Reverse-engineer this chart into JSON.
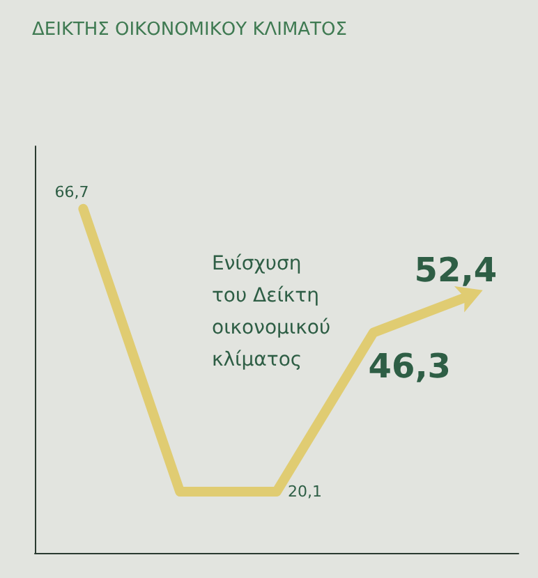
{
  "chart_data": {
    "type": "line",
    "title": "ΔΕΙΚΤΗΣ ΟΙΚΟΝΟΜΙΚΟΥ ΚΛΙΜΑΤΟΣ",
    "categories": [
      null,
      null,
      null,
      null,
      null
    ],
    "series": [
      {
        "color": "#e0cc72",
        "values": [
          66.7,
          20.1,
          20.1,
          46.3,
          52.4
        ],
        "value_labels": [
          "66,7",
          null,
          "20,1",
          "46,3",
          "52,4"
        ]
      }
    ],
    "ylim": [
      10,
      77
    ],
    "tick_labels": false,
    "grid": false,
    "marker": "none",
    "line_style": "solid",
    "annotations": [
      "Ενίσχυση\nτου Δείκτη\nοικονομικού\nκλίματος"
    ]
  }
}
